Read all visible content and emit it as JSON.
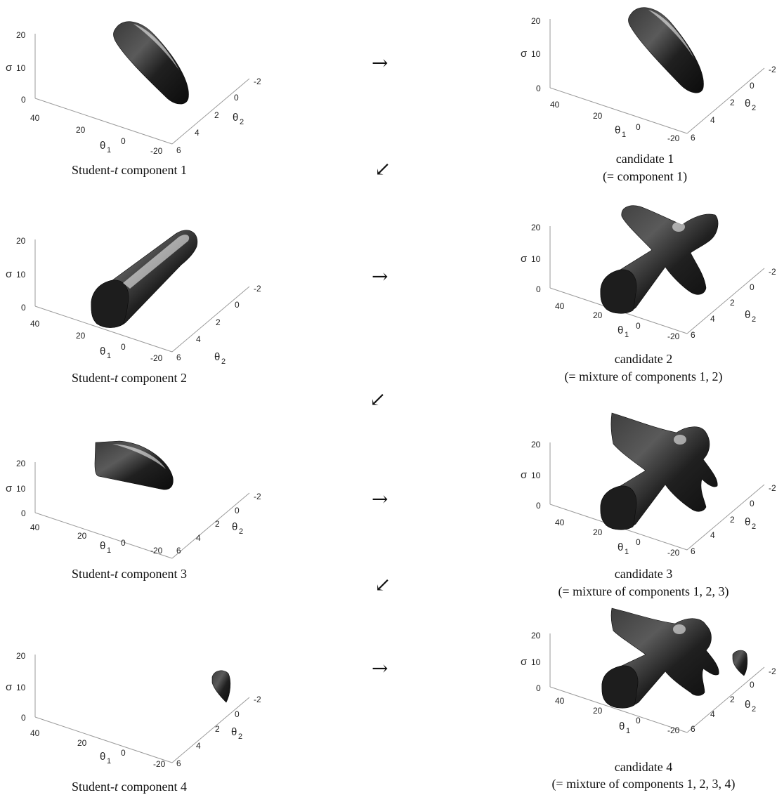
{
  "axis_ticks": {
    "sigma": [
      "0",
      "10",
      "20"
    ],
    "theta1": [
      "40",
      "20",
      "0",
      "-20"
    ],
    "theta2": [
      "6",
      "4",
      "2",
      "0",
      "-2"
    ]
  },
  "axis_labels": {
    "sigma": "σ",
    "theta1": "θ",
    "theta1_sub": "1",
    "theta2": "θ",
    "theta2_sub": "2"
  },
  "arrows": {
    "right": "→",
    "down_left": "↙"
  },
  "panels_left": [
    {
      "caption_prefix": "Student-",
      "caption_italic": "t",
      "caption_suffix": " component 1"
    },
    {
      "caption_prefix": "Student-",
      "caption_italic": "t",
      "caption_suffix": " component 2"
    },
    {
      "caption_prefix": "Student-",
      "caption_italic": "t",
      "caption_suffix": " component 3"
    },
    {
      "caption_prefix": "Student-",
      "caption_italic": "t",
      "caption_suffix": " component 4"
    }
  ],
  "panels_right": [
    {
      "caption_line1": "candidate 1",
      "caption_line2": "(= component 1)"
    },
    {
      "caption_line1": "candidate 2",
      "caption_line2": "(= mixture of components 1, 2)"
    },
    {
      "caption_line1": "candidate 3",
      "caption_line2": "(= mixture of components 1, 2, 3)"
    },
    {
      "caption_line1": "candidate 4",
      "caption_line2": "(= mixture of components 1, 2, 3, 4)"
    }
  ]
}
